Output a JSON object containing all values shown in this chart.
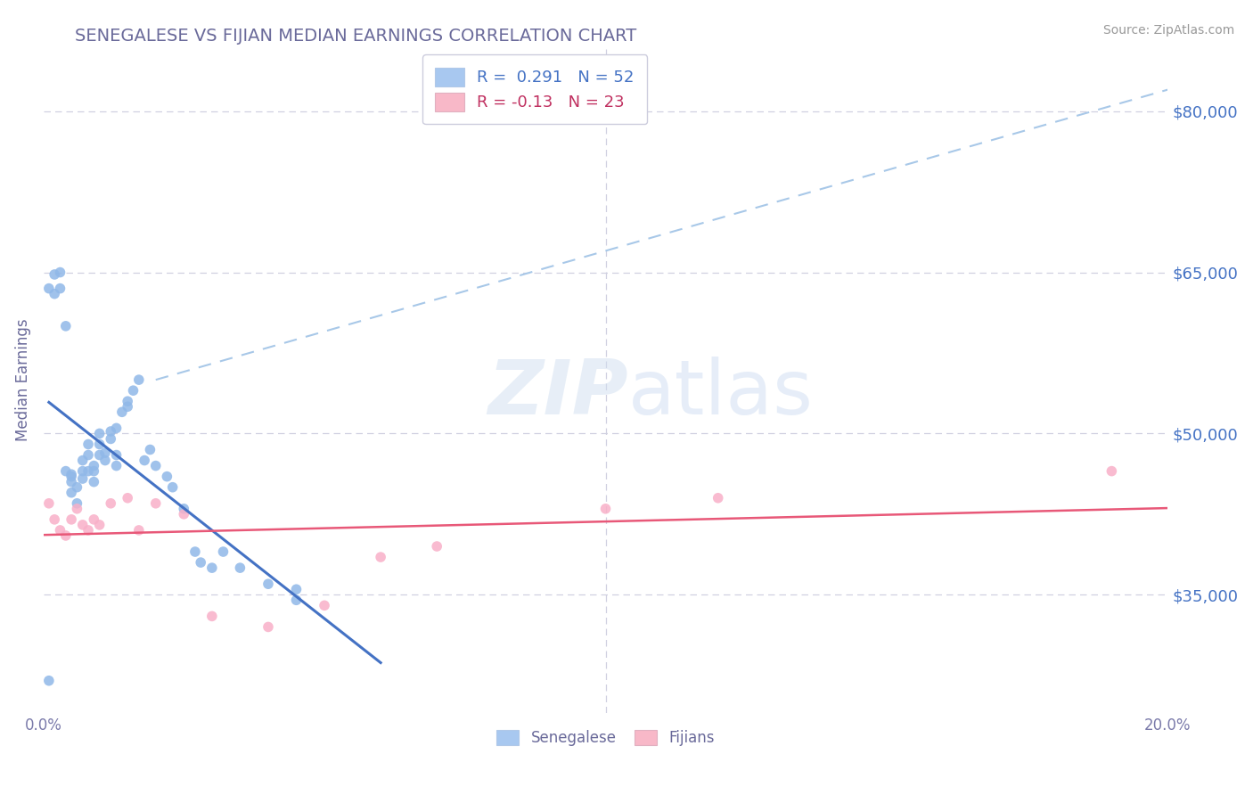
{
  "title": "SENEGALESE VS FIJIAN MEDIAN EARNINGS CORRELATION CHART",
  "source": "Source: ZipAtlas.com",
  "ylabel": "Median Earnings",
  "xlim": [
    0.0,
    0.2
  ],
  "ylim": [
    24000,
    86000
  ],
  "xticks": [
    0.0,
    0.05,
    0.1,
    0.15,
    0.2
  ],
  "xtick_labels": [
    "0.0%",
    "",
    "",
    "",
    "20.0%"
  ],
  "ytick_values": [
    35000,
    50000,
    65000,
    80000
  ],
  "ytick_labels": [
    "$35,000",
    "$50,000",
    "$65,000",
    "$80,000"
  ],
  "title_color": "#6a6a9a",
  "axis_label_color": "#6a6a9a",
  "ytick_color": "#4472c4",
  "xtick_color": "#7a7aaa",
  "r_blue": 0.291,
  "n_blue": 52,
  "r_pink": -0.13,
  "n_pink": 23,
  "blue_patch_color": "#a8c8f0",
  "pink_patch_color": "#f8b8c8",
  "blue_scatter_color": "#90b8e8",
  "pink_scatter_color": "#f8b0c8",
  "blue_line_color": "#4472c4",
  "pink_line_color": "#e85878",
  "gray_dash_color": "#a8c8e8",
  "background_color": "#ffffff",
  "watermark_color": "#d0dff0",
  "watermark_alpha": 0.5,
  "senegalese_x": [
    0.001,
    0.001,
    0.002,
    0.002,
    0.003,
    0.003,
    0.004,
    0.004,
    0.005,
    0.005,
    0.005,
    0.005,
    0.006,
    0.006,
    0.007,
    0.007,
    0.007,
    0.008,
    0.008,
    0.008,
    0.009,
    0.009,
    0.009,
    0.01,
    0.01,
    0.01,
    0.011,
    0.011,
    0.012,
    0.012,
    0.013,
    0.013,
    0.013,
    0.014,
    0.015,
    0.015,
    0.016,
    0.017,
    0.018,
    0.019,
    0.02,
    0.022,
    0.023,
    0.025,
    0.027,
    0.028,
    0.03,
    0.032,
    0.035,
    0.04,
    0.045,
    0.045
  ],
  "senegalese_y": [
    27000,
    63500,
    64800,
    63000,
    65000,
    63500,
    60000,
    46500,
    46000,
    44500,
    45500,
    46200,
    45000,
    43500,
    46500,
    47500,
    45800,
    48000,
    49000,
    46500,
    47000,
    46500,
    45500,
    48000,
    49000,
    50000,
    47500,
    48200,
    49500,
    50200,
    47000,
    48000,
    50500,
    52000,
    53000,
    52500,
    54000,
    55000,
    47500,
    48500,
    47000,
    46000,
    45000,
    43000,
    39000,
    38000,
    37500,
    39000,
    37500,
    36000,
    34500,
    35500
  ],
  "fijian_x": [
    0.001,
    0.002,
    0.003,
    0.004,
    0.005,
    0.006,
    0.007,
    0.008,
    0.009,
    0.01,
    0.012,
    0.015,
    0.017,
    0.02,
    0.025,
    0.03,
    0.04,
    0.05,
    0.06,
    0.07,
    0.1,
    0.12,
    0.19
  ],
  "fijian_y": [
    43500,
    42000,
    41000,
    40500,
    42000,
    43000,
    41500,
    41000,
    42000,
    41500,
    43500,
    44000,
    41000,
    43500,
    42500,
    33000,
    32000,
    34000,
    38500,
    39500,
    43000,
    44000,
    46500
  ]
}
